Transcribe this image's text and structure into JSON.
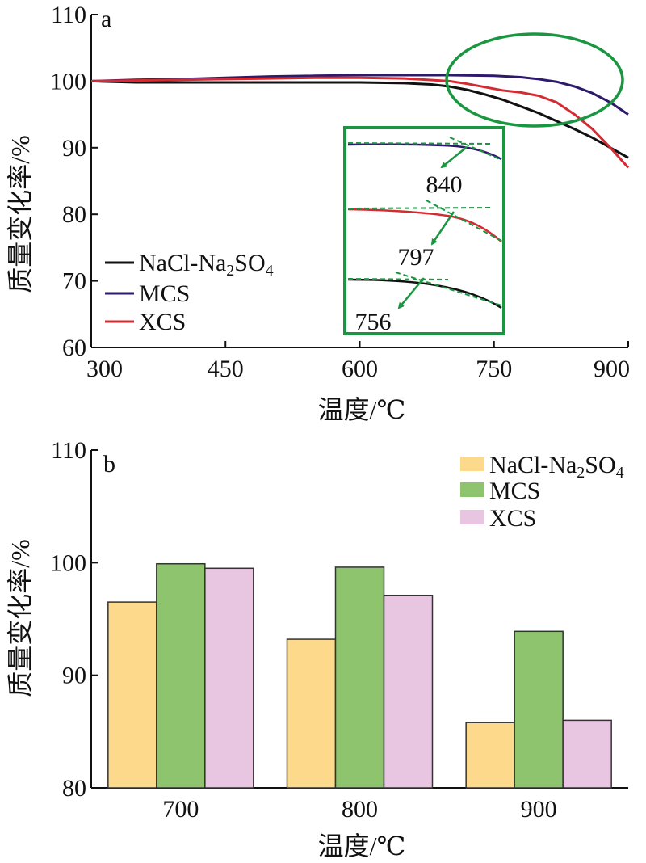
{
  "chart_data": [
    {
      "type": "line",
      "panel_label": "a",
      "xlabel": "温度/℃",
      "ylabel": "质量变化率/%",
      "xlim": [
        300,
        900
      ],
      "ylim": [
        60,
        110
      ],
      "xticks": [
        300,
        450,
        600,
        750,
        900
      ],
      "yticks": [
        60,
        70,
        80,
        90,
        100,
        110
      ],
      "legend_position": "lower-left",
      "grid": false,
      "series": [
        {
          "name": "NaCl-Na₂SO₄",
          "name_main": "NaCl-Na",
          "name_sub1": "2",
          "name_mid": "SO",
          "name_sub2": "4",
          "color": "#111111",
          "x": [
            295,
            350,
            400,
            450,
            500,
            550,
            600,
            650,
            680,
            700,
            720,
            740,
            760,
            780,
            800,
            820,
            840,
            860,
            880,
            900
          ],
          "y": [
            100.0,
            99.8,
            99.8,
            99.8,
            99.8,
            99.8,
            99.8,
            99.7,
            99.5,
            99.2,
            98.7,
            98.0,
            97.2,
            96.2,
            95.2,
            94.0,
            92.8,
            91.5,
            90.0,
            88.5
          ]
        },
        {
          "name": "MCS",
          "color": "#2e1a6b",
          "x": [
            295,
            350,
            400,
            450,
            500,
            550,
            600,
            650,
            700,
            750,
            780,
            800,
            820,
            840,
            860,
            880,
            900
          ],
          "y": [
            100.0,
            100.2,
            100.3,
            100.5,
            100.7,
            100.8,
            100.9,
            100.9,
            100.9,
            100.8,
            100.6,
            100.3,
            99.9,
            99.2,
            98.2,
            96.8,
            95.0
          ]
        },
        {
          "name": "XCS",
          "color": "#d42a32",
          "x": [
            295,
            350,
            400,
            450,
            500,
            550,
            600,
            650,
            700,
            720,
            740,
            760,
            780,
            800,
            820,
            840,
            860,
            880,
            900
          ],
          "y": [
            100.0,
            100.1,
            100.2,
            100.3,
            100.4,
            100.5,
            100.5,
            100.4,
            100.0,
            99.6,
            99.1,
            98.6,
            98.3,
            97.8,
            96.8,
            95.0,
            92.8,
            90.0,
            87.0
          ]
        }
      ],
      "inset": {
        "labels": [
          "840",
          "797",
          "756"
        ],
        "border_color": "#1a9641"
      },
      "highlight_color": "#1a9641"
    },
    {
      "type": "bar",
      "panel_label": "b",
      "xlabel": "温度/℃",
      "ylabel": "质量变化率/%",
      "ylim": [
        80,
        110
      ],
      "yticks": [
        80,
        90,
        100,
        110
      ],
      "categories": [
        "700",
        "800",
        "900"
      ],
      "legend_position": "top-right",
      "grid": false,
      "series": [
        {
          "name": "NaCl-Na₂SO₄",
          "name_main": "NaCl-Na",
          "name_sub1": "2",
          "name_mid": "SO",
          "name_sub2": "4",
          "color": "#fdd98b",
          "values": [
            96.5,
            93.2,
            85.8
          ]
        },
        {
          "name": "MCS",
          "color": "#8fc46f",
          "values": [
            99.9,
            99.6,
            93.9
          ]
        },
        {
          "name": "XCS",
          "color": "#e8c5e0",
          "values": [
            99.5,
            97.1,
            86.0
          ]
        }
      ]
    }
  ]
}
